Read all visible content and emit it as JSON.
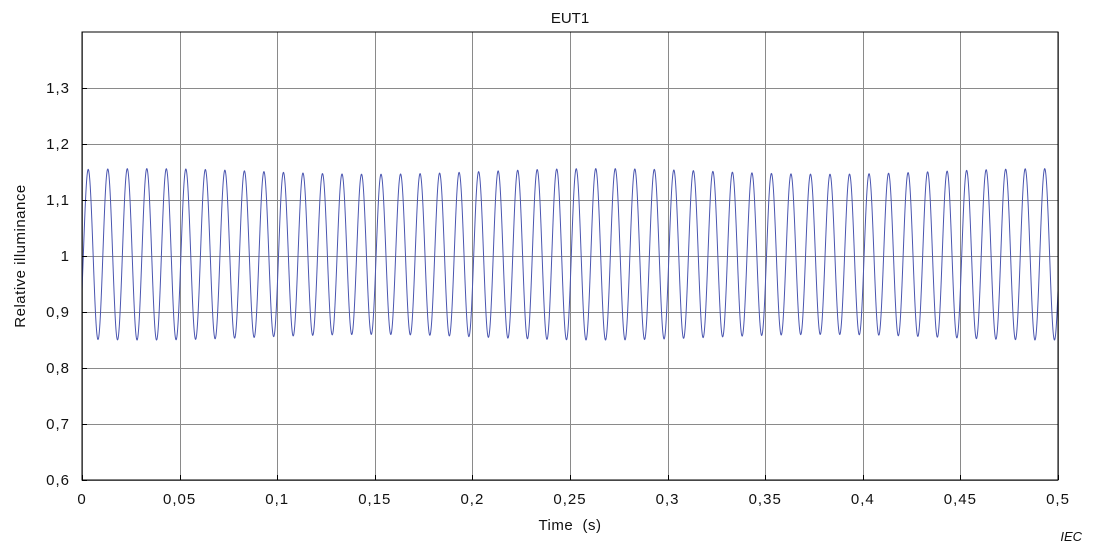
{
  "chart_data": {
    "type": "line",
    "title": "EUT1",
    "xlabel": "Time  (s)",
    "ylabel": "Relative illuminance",
    "xlim": [
      0,
      0.5
    ],
    "ylim": [
      0.6,
      1.4
    ],
    "x_ticks": [
      0,
      0.05,
      0.1,
      0.15,
      0.2,
      0.25,
      0.3,
      0.35,
      0.4,
      0.45,
      0.5
    ],
    "x_tick_labels": [
      "0",
      "0,05",
      "0,1",
      "0,15",
      "0,2",
      "0,25",
      "0,3",
      "0,35",
      "0,4",
      "0,45",
      "0,5"
    ],
    "y_ticks": [
      0.6,
      0.7,
      0.8,
      0.9,
      1.0,
      1.1,
      1.2,
      1.3
    ],
    "y_tick_labels": [
      "0,6",
      "0,7",
      "0,8",
      "0,9",
      "1",
      "1,1",
      "1,2",
      "1,3"
    ],
    "grid": true,
    "series": [
      {
        "color": "#4a55b0",
        "waveform": "sinusoid",
        "frequency_hz": 100,
        "phase_deg": -25,
        "baseline": 1.003,
        "amplitude_range": [
          0.143,
          0.153
        ],
        "max_value": 1.156,
        "min_value": 0.853,
        "x_start": 0,
        "x_end": 0.5
      }
    ]
  },
  "footer": {
    "mark": "IEC"
  }
}
